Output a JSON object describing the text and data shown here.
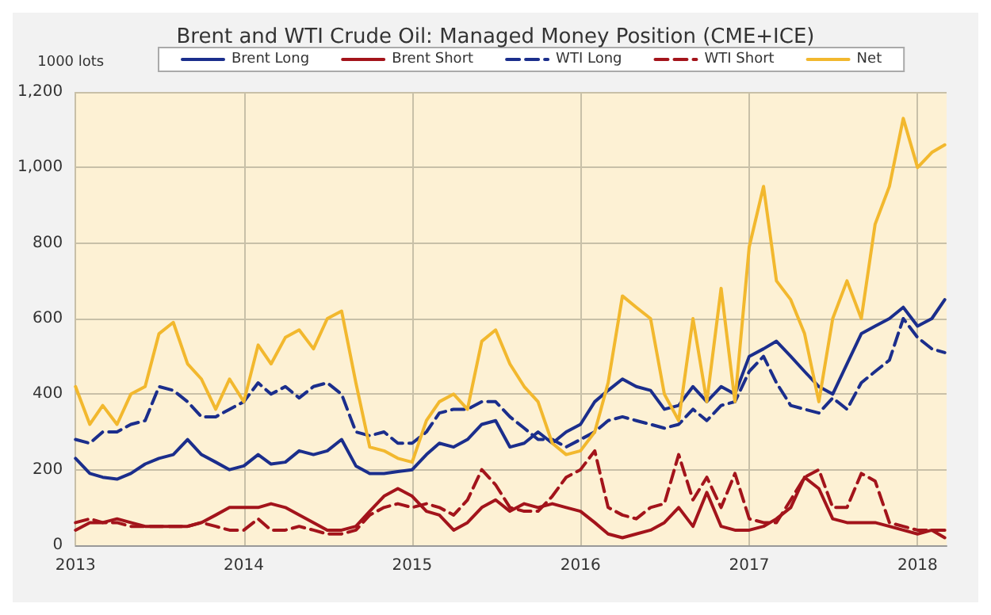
{
  "chart_data": {
    "type": "line",
    "title": "Brent and WTI Crude Oil: Managed Money Position (CME+ICE)",
    "ylabel": "1000 lots",
    "x": [
      "2013-01-01",
      "2013-02-01",
      "2013-03-01",
      "2013-04-01",
      "2013-05-01",
      "2013-06-01",
      "2013-07-01",
      "2013-08-01",
      "2013-09-01",
      "2013-10-01",
      "2013-11-01",
      "2013-12-01",
      "2014-01-01",
      "2014-02-01",
      "2014-03-01",
      "2014-04-01",
      "2014-05-01",
      "2014-06-01",
      "2014-07-01",
      "2014-08-01",
      "2014-09-01",
      "2014-10-01",
      "2014-11-01",
      "2014-12-01",
      "2015-01-01",
      "2015-02-01",
      "2015-03-01",
      "2015-04-01",
      "2015-05-01",
      "2015-06-01",
      "2015-07-01",
      "2015-08-01",
      "2015-09-01",
      "2015-10-01",
      "2015-11-01",
      "2015-12-01",
      "2016-01-01",
      "2016-02-01",
      "2016-03-01",
      "2016-04-01",
      "2016-05-01",
      "2016-06-01",
      "2016-07-01",
      "2016-08-01",
      "2016-09-01",
      "2016-10-01",
      "2016-11-01",
      "2016-12-01",
      "2017-01-01",
      "2017-02-01",
      "2017-03-01",
      "2017-04-01",
      "2017-05-01",
      "2017-06-01",
      "2017-07-01",
      "2017-08-01",
      "2017-09-01",
      "2017-10-01",
      "2017-11-01",
      "2017-12-01",
      "2018-01-01",
      "2018-02-01",
      "2018-03-01"
    ],
    "series": [
      {
        "name": "Brent Long",
        "color": "#1b2e8c",
        "line_style": "solid",
        "values": [
          230,
          190,
          180,
          175,
          190,
          215,
          230,
          240,
          280,
          240,
          220,
          200,
          210,
          240,
          215,
          220,
          250,
          240,
          250,
          280,
          210,
          190,
          190,
          195,
          200,
          240,
          270,
          260,
          280,
          320,
          330,
          260,
          270,
          300,
          270,
          300,
          320,
          380,
          410,
          440,
          420,
          410,
          360,
          370,
          420,
          380,
          420,
          400,
          500,
          520,
          540,
          500,
          460,
          420,
          400,
          480,
          560,
          580,
          600,
          630,
          580,
          600,
          650
        ]
      },
      {
        "name": "Brent Short",
        "color": "#a3141b",
        "line_style": "solid",
        "values": [
          40,
          60,
          60,
          70,
          60,
          50,
          50,
          50,
          50,
          60,
          80,
          100,
          100,
          100,
          110,
          100,
          80,
          60,
          40,
          40,
          50,
          90,
          130,
          150,
          130,
          90,
          80,
          40,
          60,
          100,
          120,
          90,
          110,
          100,
          110,
          100,
          90,
          60,
          30,
          20,
          30,
          40,
          60,
          100,
          50,
          140,
          50,
          40,
          40,
          50,
          70,
          100,
          180,
          150,
          70,
          60,
          60,
          60,
          50,
          40,
          30,
          40,
          20
        ]
      },
      {
        "name": "WTI Long",
        "color": "#1b2e8c",
        "line_style": "dashed",
        "values": [
          280,
          270,
          300,
          300,
          320,
          330,
          420,
          410,
          380,
          340,
          340,
          360,
          380,
          430,
          400,
          420,
          390,
          420,
          430,
          400,
          300,
          290,
          300,
          270,
          270,
          300,
          350,
          360,
          360,
          380,
          380,
          340,
          310,
          280,
          280,
          260,
          280,
          300,
          330,
          340,
          330,
          320,
          310,
          320,
          360,
          330,
          370,
          380,
          460,
          500,
          430,
          370,
          360,
          350,
          390,
          360,
          430,
          460,
          490,
          600,
          550,
          520,
          510
        ]
      },
      {
        "name": "WTI Short",
        "color": "#a3141b",
        "line_style": "dashed",
        "values": [
          60,
          70,
          60,
          60,
          50,
          50,
          50,
          50,
          50,
          60,
          50,
          40,
          40,
          70,
          40,
          40,
          50,
          40,
          30,
          30,
          40,
          80,
          100,
          110,
          100,
          110,
          100,
          80,
          120,
          200,
          160,
          100,
          90,
          90,
          130,
          180,
          200,
          250,
          100,
          80,
          70,
          100,
          110,
          240,
          120,
          180,
          100,
          190,
          70,
          60,
          60,
          120,
          180,
          200,
          100,
          100,
          190,
          170,
          60,
          50,
          40,
          40,
          40
        ]
      },
      {
        "name": "Net",
        "color": "#f2b82e",
        "line_style": "solid",
        "values": [
          420,
          320,
          370,
          320,
          400,
          420,
          560,
          590,
          480,
          440,
          360,
          440,
          380,
          530,
          480,
          550,
          570,
          520,
          600,
          620,
          430,
          260,
          250,
          230,
          220,
          330,
          380,
          400,
          360,
          540,
          570,
          480,
          420,
          380,
          270,
          240,
          250,
          300,
          430,
          660,
          630,
          600,
          400,
          330,
          600,
          380,
          680,
          380,
          790,
          950,
          700,
          650,
          560,
          380,
          600,
          700,
          600,
          850,
          950,
          1130,
          1000,
          1040,
          1060
        ]
      }
    ],
    "xlim": [
      "2013-01-01",
      "2018-03-05"
    ],
    "xticks": [
      {
        "value": "2013-01-01",
        "label": "2013"
      },
      {
        "value": "2014-01-01",
        "label": "2014"
      },
      {
        "value": "2015-01-01",
        "label": "2015"
      },
      {
        "value": "2016-01-01",
        "label": "2016"
      },
      {
        "value": "2017-01-01",
        "label": "2017"
      },
      {
        "value": "2018-01-01",
        "label": "2018"
      }
    ],
    "ylim": [
      0,
      1200
    ],
    "yticks": [
      0,
      200,
      400,
      600,
      800,
      {
        "value": 1000,
        "label": "1,000"
      },
      {
        "value": 1200,
        "label": "1,200"
      }
    ],
    "grid": true,
    "legend": "top",
    "marker": "none"
  }
}
